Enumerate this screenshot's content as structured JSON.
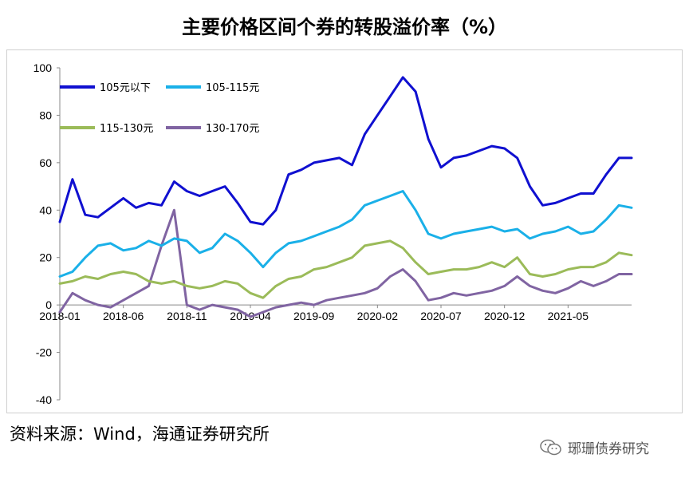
{
  "title": "主要价格区间个券的转股溢价率（%）",
  "source": "资料来源：Wind，海通证券研究所",
  "watermark": "琊珊债券研究",
  "chart_data": {
    "type": "line",
    "title": "主要价格区间个券的转股溢价率（%）",
    "xlabel": "",
    "ylabel": "",
    "ylim": [
      -40,
      100
    ],
    "yticks": [
      "-40",
      "-20",
      "0",
      "20",
      "40",
      "60",
      "80",
      "100"
    ],
    "yticks_values": [
      -40,
      -20,
      0,
      20,
      40,
      60,
      80,
      100
    ],
    "xticks": [
      "2018-01",
      "2018-06",
      "2018-11",
      "2019-04",
      "2019-09",
      "2020-02",
      "2020-07",
      "2020-12",
      "2021-05"
    ],
    "xticks_values": [
      "2018-01",
      "2018-06",
      "2018-11",
      "2019-04",
      "2019-09",
      "2020-02",
      "2020-07",
      "2020-12",
      "2021-05"
    ],
    "x": [
      "2018-01",
      "2018-02",
      "2018-03",
      "2018-04",
      "2018-05",
      "2018-06",
      "2018-07",
      "2018-08",
      "2018-09",
      "2018-10",
      "2018-11",
      "2018-12",
      "2019-01",
      "2019-02",
      "2019-03",
      "2019-04",
      "2019-05",
      "2019-06",
      "2019-07",
      "2019-08",
      "2019-09",
      "2019-10",
      "2019-11",
      "2019-12",
      "2020-01",
      "2020-02",
      "2020-03",
      "2020-04",
      "2020-05",
      "2020-06",
      "2020-07",
      "2020-08",
      "2020-09",
      "2020-10",
      "2020-11",
      "2020-12",
      "2021-01",
      "2021-02",
      "2021-03",
      "2021-04",
      "2021-05",
      "2021-06",
      "2021-07",
      "2021-08",
      "2021-09",
      "2021-10"
    ],
    "grid": false,
    "legend_position": "top-left",
    "series": [
      {
        "name": "105元以下",
        "color": "#1010d0",
        "values": [
          35,
          53,
          38,
          37,
          41,
          45,
          41,
          43,
          42,
          52,
          48,
          46,
          48,
          50,
          43,
          35,
          34,
          40,
          55,
          57,
          60,
          61,
          62,
          59,
          72,
          80,
          88,
          96,
          90,
          70,
          58,
          62,
          63,
          65,
          67,
          66,
          62,
          50,
          42,
          43,
          45,
          47,
          47,
          55,
          62,
          62
        ]
      },
      {
        "name": "105-115元",
        "color": "#1ab0e8",
        "values": [
          12,
          14,
          20,
          25,
          26,
          23,
          24,
          27,
          25,
          28,
          27,
          22,
          24,
          30,
          27,
          22,
          16,
          22,
          26,
          27,
          29,
          31,
          33,
          36,
          42,
          44,
          46,
          48,
          40,
          30,
          28,
          30,
          31,
          32,
          33,
          31,
          32,
          28,
          30,
          31,
          33,
          30,
          31,
          36,
          42,
          41
        ]
      },
      {
        "name": "115-130元",
        "color": "#9bbb59",
        "values": [
          9,
          10,
          12,
          11,
          13,
          14,
          13,
          10,
          9,
          10,
          8,
          7,
          8,
          10,
          9,
          5,
          3,
          8,
          11,
          12,
          15,
          16,
          18,
          20,
          25,
          26,
          27,
          24,
          18,
          13,
          14,
          15,
          15,
          16,
          18,
          16,
          20,
          13,
          12,
          13,
          15,
          16,
          16,
          18,
          22,
          21
        ]
      },
      {
        "name": "130-170元",
        "color": "#8064a2",
        "values": [
          -3,
          5,
          2,
          0,
          -1,
          2,
          5,
          8,
          25,
          40,
          0,
          -2,
          0,
          -1,
          -2,
          -5,
          -3,
          -1,
          0,
          1,
          0,
          2,
          3,
          4,
          5,
          7,
          12,
          15,
          10,
          2,
          3,
          5,
          4,
          5,
          6,
          8,
          12,
          8,
          6,
          5,
          7,
          10,
          8,
          10,
          13,
          13
        ]
      }
    ]
  }
}
